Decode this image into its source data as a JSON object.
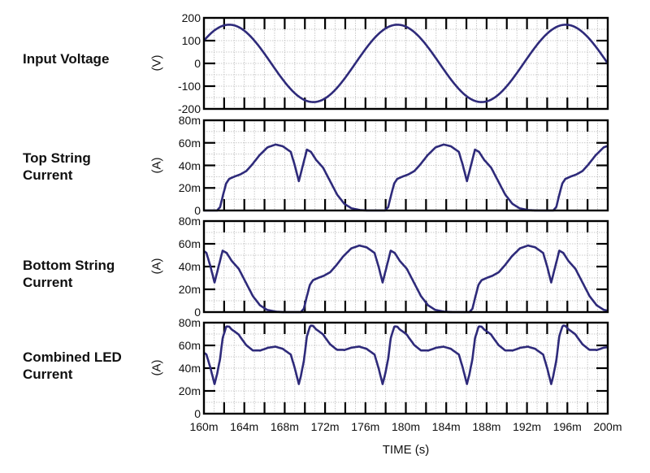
{
  "chart_data": {
    "type": "line",
    "title": "",
    "xlabel": "TIME  (s)",
    "x_ticks": [
      "160m",
      "164m",
      "168m",
      "172m",
      "176m",
      "180m",
      "184m",
      "188m",
      "192m",
      "196m",
      "200m"
    ],
    "xlim": [
      0.16,
      0.2
    ],
    "line_color": "#2e2a7a",
    "panels": [
      {
        "label": "Input Voltage",
        "ylabel": "(V)",
        "y_ticks": [
          "200",
          "100",
          "0",
          "-100",
          "-200"
        ],
        "ylim": [
          -200,
          200
        ],
        "series": {
          "name": "Input Voltage",
          "kind": "sine",
          "amplitude": 170,
          "frequency_hz": 60,
          "zero_descending_at_ms": 200
        }
      },
      {
        "label": "Top String\nCurrent",
        "ylabel": "(A)",
        "y_ticks": [
          "80m",
          "60m",
          "40m",
          "20m",
          "0"
        ],
        "ylim": [
          0,
          80
        ],
        "series": {
          "name": "Top String Current",
          "unit": "mA",
          "pulse_starts_ms": [
            144.6,
            161.3,
            177.95,
            194.6
          ]
        }
      },
      {
        "label": "Bottom String\nCurrent",
        "ylabel": "(A)",
        "y_ticks": [
          "80m",
          "60m",
          "40m",
          "20m",
          "0"
        ],
        "ylim": [
          0,
          80
        ],
        "series": {
          "name": "Bottom String Current",
          "unit": "mA",
          "pulse_starts_ms": [
            152.95,
            169.6,
            186.3
          ]
        }
      },
      {
        "label": "Combined LED\nCurrent",
        "ylabel": "(A)",
        "y_ticks": [
          "80m",
          "60m",
          "40m",
          "20m",
          "0"
        ],
        "ylim": [
          0,
          80
        ],
        "series": {
          "name": "Combined LED Current",
          "unit": "mA",
          "sum_of": [
            "Top String Current",
            "Bottom String Current"
          ]
        }
      }
    ],
    "pulse_shape_ms_mA": [
      [
        0,
        0
      ],
      [
        0.3,
        3
      ],
      [
        0.6,
        14
      ],
      [
        0.9,
        24
      ],
      [
        1.2,
        28
      ],
      [
        1.7,
        30
      ],
      [
        2.3,
        32
      ],
      [
        2.9,
        35
      ],
      [
        3.5,
        41
      ],
      [
        4.2,
        49
      ],
      [
        5.0,
        56
      ],
      [
        5.8,
        58.5
      ],
      [
        6.5,
        57
      ],
      [
        7.3,
        52
      ],
      [
        7.7,
        40
      ],
      [
        8.1,
        26
      ],
      [
        8.5,
        40
      ],
      [
        8.9,
        54
      ],
      [
        9.3,
        52
      ],
      [
        9.8,
        45
      ],
      [
        10.5,
        38
      ],
      [
        11.2,
        26
      ],
      [
        11.9,
        14
      ],
      [
        12.6,
        6
      ],
      [
        13.3,
        2
      ],
      [
        14.2,
        0.3
      ],
      [
        15.0,
        0
      ]
    ]
  }
}
